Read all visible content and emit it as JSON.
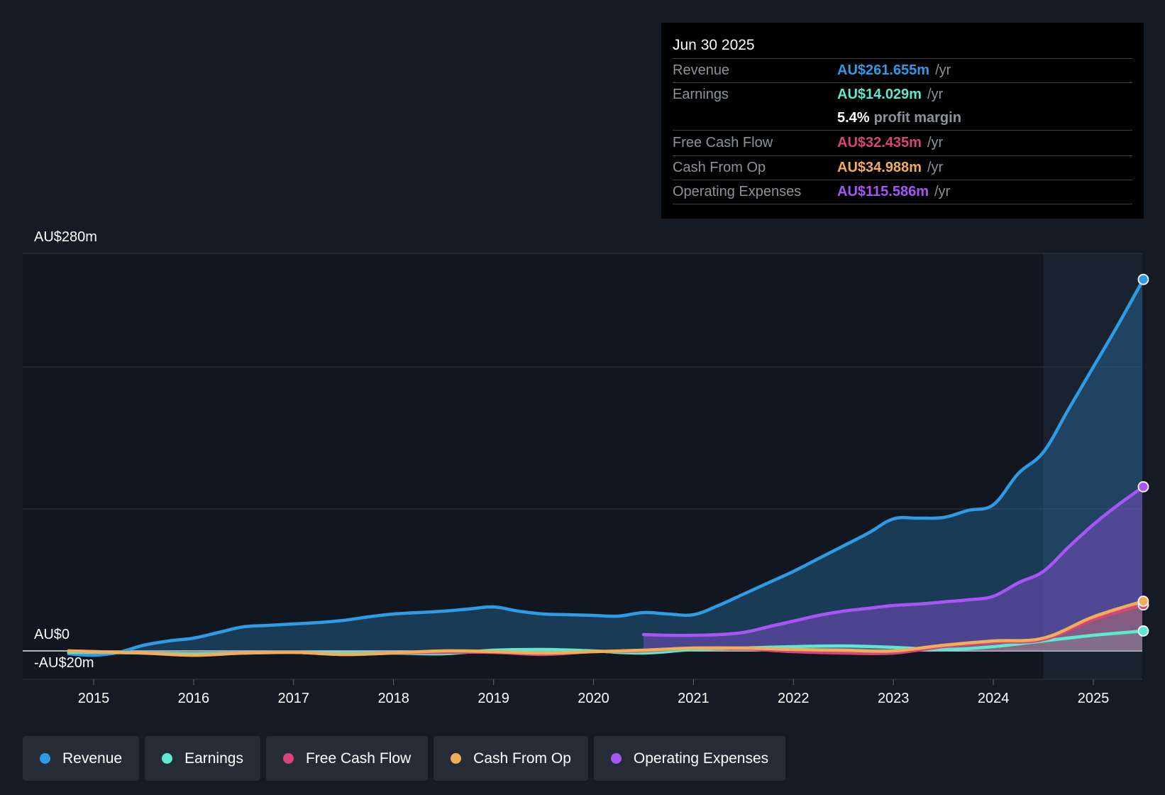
{
  "tooltip": {
    "date": "Jun 30 2025",
    "rows": [
      {
        "label": "Revenue",
        "value": "AU$261.655m",
        "unit": "/yr",
        "color": "#2f9be4"
      },
      {
        "label": "Earnings",
        "value": "AU$14.029m",
        "unit": "/yr",
        "color": "#5de8d0"
      },
      {
        "label": "Free Cash Flow",
        "value": "AU$32.435m",
        "unit": "/yr",
        "color": "#d7447a"
      },
      {
        "label": "Cash From Op",
        "value": "AU$34.988m",
        "unit": "/yr",
        "color": "#f0ad5a"
      },
      {
        "label": "Operating Expenses",
        "value": "AU$115.586m",
        "unit": "/yr",
        "color": "#a855f7"
      }
    ],
    "margin_value": "5.4%",
    "margin_label": "profit margin"
  },
  "legend": [
    {
      "label": "Revenue",
      "color": "#2f9be4"
    },
    {
      "label": "Earnings",
      "color": "#5de8d0"
    },
    {
      "label": "Free Cash Flow",
      "color": "#d7447a"
    },
    {
      "label": "Cash From Op",
      "color": "#f0ad5a"
    },
    {
      "label": "Operating Expenses",
      "color": "#a855f7"
    }
  ],
  "chart_data": {
    "type": "area",
    "title": "",
    "xlabel": "",
    "ylabel": "",
    "y_top_label": "AU$280m",
    "y_zero_label": "AU$0",
    "y_bottom_label": "-AU$20m",
    "ylim": [
      -20,
      280
    ],
    "xlim": [
      2014.7,
      2025.5
    ],
    "x_ticks": [
      2015,
      2016,
      2017,
      2018,
      2019,
      2020,
      2021,
      2022,
      2023,
      2024,
      2025
    ],
    "x_tick_labels": [
      "2015",
      "2016",
      "2017",
      "2018",
      "2019",
      "2020",
      "2021",
      "2022",
      "2023",
      "2024",
      "2025"
    ],
    "gridlines": [
      0,
      100,
      200,
      280
    ],
    "forecast_shade_start": 2024.5,
    "series": [
      {
        "name": "Revenue",
        "color": "#2f9be4",
        "x": [
          2014.75,
          2015.0,
          2015.25,
          2015.5,
          2015.75,
          2016.0,
          2016.25,
          2016.5,
          2016.75,
          2017.0,
          2017.25,
          2017.5,
          2017.75,
          2018.0,
          2018.25,
          2018.5,
          2018.75,
          2019.0,
          2019.25,
          2019.5,
          2019.75,
          2020.0,
          2020.25,
          2020.5,
          2020.75,
          2021.0,
          2021.25,
          2021.5,
          2021.75,
          2022.0,
          2022.25,
          2022.5,
          2022.75,
          2023.0,
          2023.25,
          2023.5,
          2023.75,
          2024.0,
          2024.25,
          2024.5,
          2024.75,
          2025.0,
          2025.25,
          2025.5
        ],
        "values": [
          -2,
          -3,
          -1,
          4,
          7,
          9,
          13,
          17,
          18,
          19,
          20,
          21.5,
          24,
          26,
          27,
          28,
          29.5,
          31,
          28,
          26,
          25.5,
          25,
          24.5,
          27,
          26,
          25.5,
          32,
          40,
          48,
          56,
          65,
          74,
          83,
          93,
          93.5,
          94,
          99,
          103,
          125,
          140,
          170,
          200,
          230,
          261.655
        ]
      },
      {
        "name": "Operating Expenses",
        "color": "#a855f7",
        "x": [
          2020.5,
          2020.75,
          2021.0,
          2021.25,
          2021.5,
          2021.75,
          2022.0,
          2022.25,
          2022.5,
          2022.75,
          2023.0,
          2023.25,
          2023.5,
          2023.75,
          2024.0,
          2024.25,
          2024.5,
          2024.75,
          2025.0,
          2025.25,
          2025.5
        ],
        "values": [
          11.5,
          11,
          11,
          11.5,
          13,
          17,
          21,
          25,
          28,
          30,
          32,
          33,
          34.5,
          36,
          38.5,
          48,
          56,
          73,
          89,
          103,
          115.586
        ]
      },
      {
        "name": "Earnings",
        "color": "#5de8d0",
        "x": [
          2014.75,
          2015.0,
          2015.5,
          2016.0,
          2016.5,
          2017.0,
          2017.5,
          2018.0,
          2018.5,
          2019.0,
          2019.5,
          2020.0,
          2020.5,
          2021.0,
          2021.5,
          2022.0,
          2022.5,
          2023.0,
          2023.5,
          2024.0,
          2024.5,
          2025.0,
          2025.5
        ],
        "values": [
          -1,
          -1,
          -1.5,
          -2,
          -1.5,
          -1,
          -1.5,
          -1.5,
          -2,
          0.5,
          1,
          0,
          -1.5,
          1,
          2,
          3,
          3.5,
          2.5,
          1,
          3,
          7,
          11,
          14.029
        ]
      },
      {
        "name": "Free Cash Flow",
        "color": "#d7447a",
        "x": [
          2014.75,
          2015.0,
          2015.5,
          2016.0,
          2016.5,
          2017.0,
          2017.5,
          2018.0,
          2018.5,
          2019.0,
          2019.5,
          2020.0,
          2020.5,
          2021.0,
          2021.5,
          2022.0,
          2022.5,
          2023.0,
          2023.5,
          2024.0,
          2024.5,
          2025.0,
          2025.5
        ],
        "values": [
          0,
          -0.5,
          -1.5,
          -3,
          -1.5,
          -1,
          -2.5,
          -1.5,
          -1,
          -1,
          -2.5,
          -0.5,
          0,
          2,
          1.5,
          -0.5,
          -1.5,
          -1.5,
          3,
          6,
          8,
          22,
          32.435
        ]
      },
      {
        "name": "Cash From Op",
        "color": "#f0ad5a",
        "x": [
          2014.75,
          2015.0,
          2015.5,
          2016.0,
          2016.5,
          2017.0,
          2017.5,
          2018.0,
          2018.5,
          2019.0,
          2019.5,
          2020.0,
          2020.5,
          2021.0,
          2021.5,
          2022.0,
          2022.5,
          2023.0,
          2023.5,
          2024.0,
          2024.5,
          2025.0,
          2025.5
        ],
        "values": [
          0,
          -0.5,
          -1.5,
          -3,
          -1.5,
          -1,
          -2.5,
          -1.5,
          0,
          -0.5,
          -1.5,
          -0.5,
          0.5,
          2,
          2,
          1,
          0.5,
          0,
          4,
          7,
          9,
          24,
          34.988
        ]
      }
    ]
  }
}
